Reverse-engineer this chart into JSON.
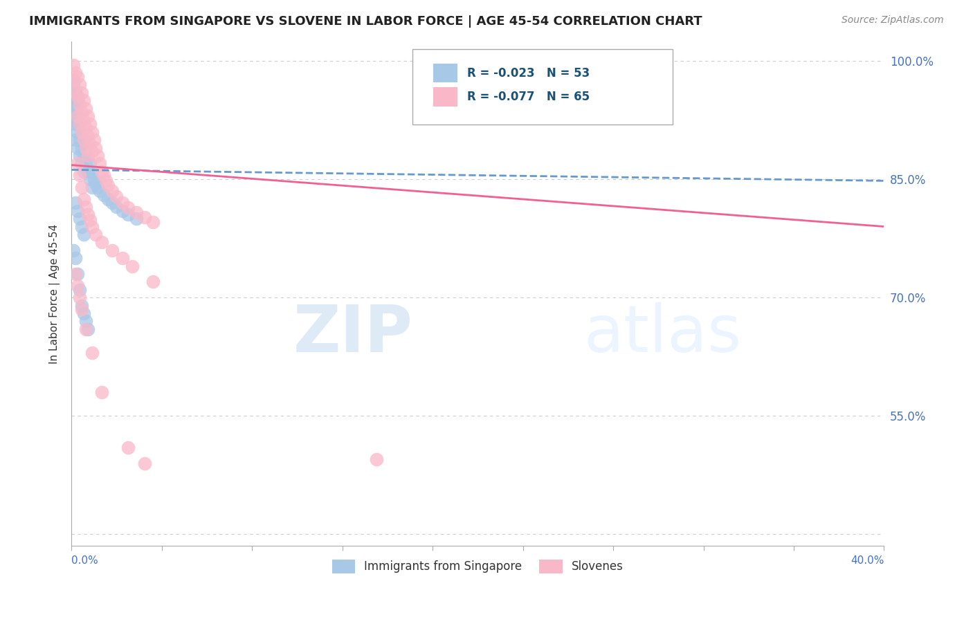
{
  "title": "IMMIGRANTS FROM SINGAPORE VS SLOVENE IN LABOR FORCE | AGE 45-54 CORRELATION CHART",
  "source": "Source: ZipAtlas.com",
  "ylabel": "In Labor Force | Age 45-54",
  "xlim": [
    0.0,
    0.4
  ],
  "ylim": [
    0.385,
    1.025
  ],
  "legend_label1": "Immigrants from Singapore",
  "legend_label2": "Slovenes",
  "R1": -0.023,
  "N1": 53,
  "R2": -0.077,
  "N2": 65,
  "color_singapore": "#a8c8e8",
  "color_slovene": "#f9b8c8",
  "color_singapore_line": "#6699cc",
  "color_slovene_line": "#f06090",
  "bg_color": "#ffffff",
  "y_tick_vals": [
    0.4,
    0.55,
    0.7,
    0.85,
    1.0
  ],
  "y_tick_labels": [
    "",
    "55.0%",
    "70.0%",
    "85.0%",
    "100.0%"
  ],
  "sg_trend": [
    0.862,
    0.848
  ],
  "sl_trend": [
    0.868,
    0.79
  ],
  "singapore_x": [
    0.001,
    0.001,
    0.001,
    0.001,
    0.002,
    0.002,
    0.002,
    0.002,
    0.003,
    0.003,
    0.003,
    0.003,
    0.004,
    0.004,
    0.004,
    0.005,
    0.005,
    0.005,
    0.006,
    0.006,
    0.006,
    0.007,
    0.007,
    0.008,
    0.008,
    0.009,
    0.009,
    0.01,
    0.01,
    0.011,
    0.012,
    0.013,
    0.014,
    0.016,
    0.018,
    0.02,
    0.022,
    0.025,
    0.028,
    0.032,
    0.001,
    0.002,
    0.003,
    0.004,
    0.005,
    0.006,
    0.007,
    0.008,
    0.002,
    0.003,
    0.004,
    0.005,
    0.006
  ],
  "singapore_y": [
    0.97,
    0.955,
    0.94,
    0.925,
    0.96,
    0.94,
    0.92,
    0.9,
    0.95,
    0.93,
    0.91,
    0.89,
    0.92,
    0.9,
    0.88,
    0.91,
    0.89,
    0.87,
    0.9,
    0.88,
    0.86,
    0.89,
    0.87,
    0.88,
    0.86,
    0.87,
    0.85,
    0.86,
    0.84,
    0.85,
    0.845,
    0.84,
    0.835,
    0.83,
    0.825,
    0.82,
    0.815,
    0.81,
    0.805,
    0.8,
    0.76,
    0.75,
    0.73,
    0.71,
    0.69,
    0.68,
    0.67,
    0.66,
    0.82,
    0.81,
    0.8,
    0.79,
    0.78
  ],
  "slovene_x": [
    0.001,
    0.001,
    0.002,
    0.002,
    0.003,
    0.003,
    0.003,
    0.004,
    0.004,
    0.004,
    0.005,
    0.005,
    0.005,
    0.006,
    0.006,
    0.006,
    0.007,
    0.007,
    0.007,
    0.008,
    0.008,
    0.008,
    0.009,
    0.009,
    0.01,
    0.01,
    0.011,
    0.012,
    0.013,
    0.014,
    0.015,
    0.016,
    0.017,
    0.018,
    0.02,
    0.022,
    0.025,
    0.028,
    0.032,
    0.036,
    0.04,
    0.003,
    0.004,
    0.005,
    0.006,
    0.007,
    0.008,
    0.009,
    0.01,
    0.012,
    0.015,
    0.02,
    0.025,
    0.03,
    0.04,
    0.002,
    0.003,
    0.004,
    0.005,
    0.007,
    0.01,
    0.015,
    0.028,
    0.036,
    0.15
  ],
  "slovene_y": [
    0.995,
    0.975,
    0.985,
    0.96,
    0.98,
    0.955,
    0.93,
    0.97,
    0.945,
    0.92,
    0.96,
    0.935,
    0.91,
    0.95,
    0.925,
    0.9,
    0.94,
    0.915,
    0.89,
    0.93,
    0.905,
    0.88,
    0.92,
    0.895,
    0.91,
    0.885,
    0.9,
    0.89,
    0.88,
    0.87,
    0.86,
    0.855,
    0.848,
    0.842,
    0.835,
    0.828,
    0.82,
    0.814,
    0.808,
    0.802,
    0.796,
    0.87,
    0.855,
    0.84,
    0.825,
    0.815,
    0.805,
    0.798,
    0.79,
    0.78,
    0.77,
    0.76,
    0.75,
    0.74,
    0.72,
    0.73,
    0.715,
    0.7,
    0.685,
    0.66,
    0.63,
    0.58,
    0.51,
    0.49,
    0.495
  ]
}
